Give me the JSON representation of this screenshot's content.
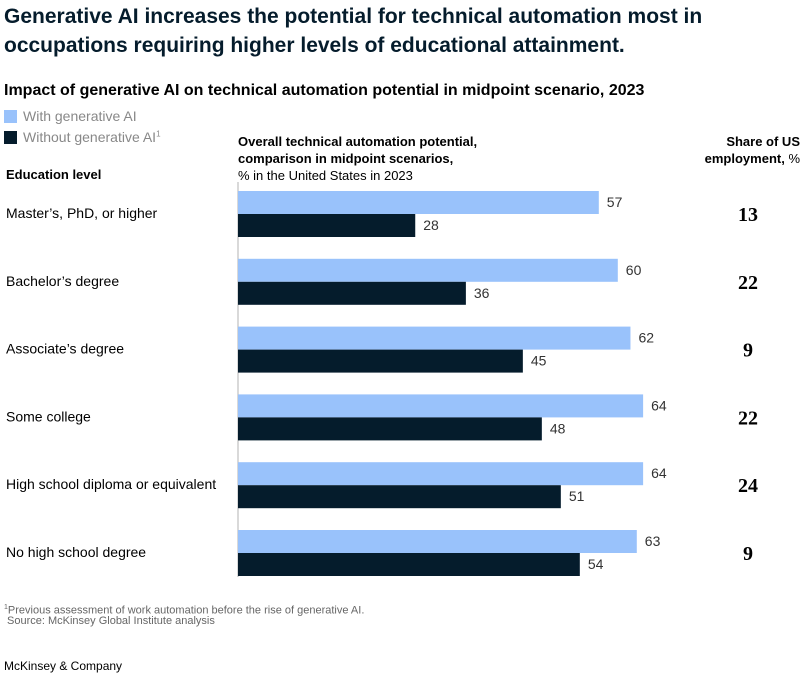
{
  "headline": "Generative AI increases the potential for technical automation most in occupations requiring higher levels of educational attainment.",
  "subtitle": "Impact of generative AI on technical automation potential in midpoint scenario, 2023",
  "legend": [
    {
      "label": "With generative AI",
      "sup": "",
      "color": "#99c2fb"
    },
    {
      "label": "Without generative AI",
      "sup": "1",
      "color": "#051c2c"
    }
  ],
  "axis_title": {
    "line1": "Overall technical automation potential,",
    "line2": "comparison in midpoint scenarios,",
    "line3": "% in the United States in 2023"
  },
  "share_title": {
    "line1": "Share of US",
    "line2_bold": "employment,",
    "line2_rest": " %"
  },
  "edu_header": "Education level",
  "chart_data": {
    "type": "bar",
    "orientation": "horizontal",
    "title": "Impact of generative AI on technical automation potential in midpoint scenario, 2023",
    "xlabel": "Overall technical automation potential, comparison in midpoint scenarios, % in the United States in 2023",
    "ylabel": "Education level",
    "xlim": [
      0,
      100
    ],
    "categories": [
      "Master’s, PhD, or higher",
      "Bachelor’s degree",
      "Associate’s degree",
      "Some college",
      "High school diploma or equivalent",
      "No high school degree"
    ],
    "series": [
      {
        "name": "With generative AI",
        "color": "#99c2fb",
        "values": [
          57,
          60,
          62,
          64,
          64,
          63
        ]
      },
      {
        "name": "Without generative AI",
        "color": "#051c2c",
        "values": [
          28,
          36,
          45,
          48,
          51,
          54
        ]
      }
    ],
    "share_of_us_employment": [
      13,
      22,
      9,
      22,
      24,
      9
    ],
    "legend_position": "top-left"
  },
  "footnote": {
    "sup": "1",
    "text": "Previous assessment of work automation before the rise of generative AI."
  },
  "source": "Source: McKinsey Global Institute analysis",
  "brand": "McKinsey & Company"
}
